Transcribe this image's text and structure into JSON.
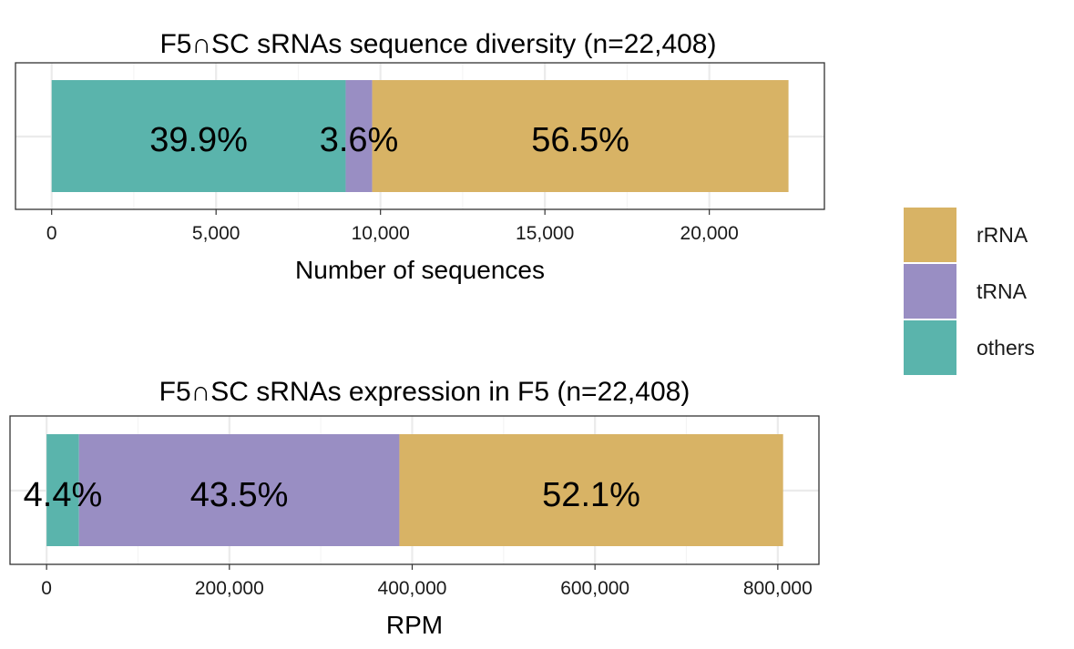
{
  "colors": {
    "rRNA": "#D8B365",
    "tRNA": "#998EC3",
    "others": "#5AB4AC"
  },
  "legend": {
    "items": [
      {
        "key": "rRNA",
        "label": "rRNA"
      },
      {
        "key": "tRNA",
        "label": "tRNA"
      },
      {
        "key": "others",
        "label": "others"
      }
    ]
  },
  "chart_data": [
    {
      "type": "bar",
      "orientation": "horizontal",
      "stacked": true,
      "title": "F5∩SC sRNAs sequence diversity (n=22,408)",
      "xlabel": "Number of sequences",
      "ylabel": "",
      "xlim": [
        -1100,
        23500
      ],
      "xticks": [
        0,
        5000,
        10000,
        15000,
        20000
      ],
      "xtick_labels": [
        "0",
        "5,000",
        "10,000",
        "15,000",
        "20,000"
      ],
      "series": [
        {
          "name": "others",
          "value": 8941,
          "label": "39.9%"
        },
        {
          "name": "tRNA",
          "value": 807,
          "label": "3.6%"
        },
        {
          "name": "rRNA",
          "value": 12660,
          "label": "56.5%"
        }
      ],
      "grid": true
    },
    {
      "type": "bar",
      "orientation": "horizontal",
      "stacked": true,
      "title": "F5∩SC sRNAs expression in F5 (n=22,408)",
      "xlabel": "RPM",
      "ylabel": "",
      "xlim": [
        -40000,
        845000
      ],
      "xticks": [
        0,
        200000,
        400000,
        600000,
        800000
      ],
      "xtick_labels": [
        "0",
        "200,000",
        "400,000",
        "600,000",
        "800,000"
      ],
      "series": [
        {
          "name": "others",
          "value": 35500,
          "label": "4.4%"
        },
        {
          "name": "tRNA",
          "value": 350500,
          "label": "43.5%"
        },
        {
          "name": "rRNA",
          "value": 419800,
          "label": "52.1%"
        }
      ],
      "grid": true
    }
  ]
}
